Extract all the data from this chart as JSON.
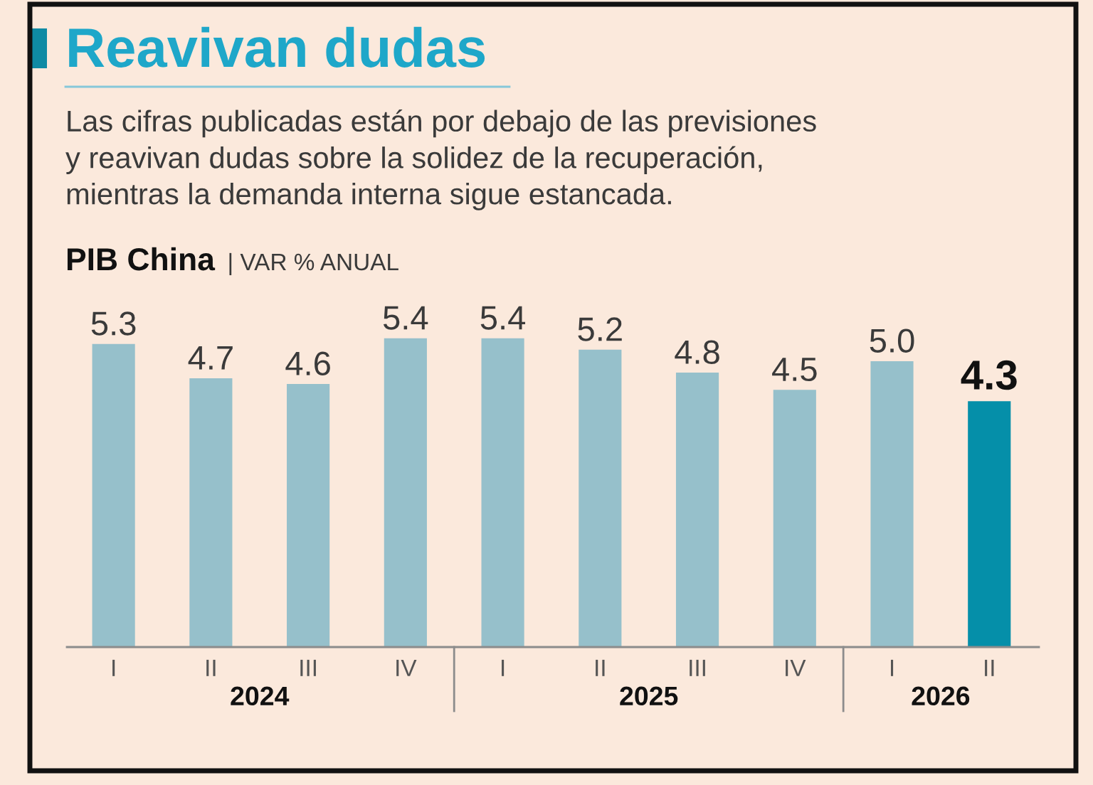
{
  "chart_data": {
    "type": "bar",
    "title": "Reavivan dudas",
    "subtitle": "Las cifras publicadas están por debajo de las previsiones\ny reavivan dudas sobre la solidez de la recuperación,\nmientras la demanda interna sigue estancada.",
    "ylabel": "PIB China | VAR % ANUAL",
    "categories": [
      "I",
      "II",
      "III",
      "IV",
      "I",
      "II",
      "III",
      "IV",
      "I",
      "II"
    ],
    "values": [
      5.3,
      4.7,
      4.6,
      5.4,
      5.4,
      5.2,
      4.8,
      4.5,
      5.0,
      4.3
    ],
    "value_labels": [
      "5.3",
      "4.7",
      "4.6",
      "5.4",
      "5.4",
      "5.2",
      "4.8",
      "4.5",
      "5.0",
      "4.3"
    ],
    "colors": [
      "#96c0cb",
      "#96c0cb",
      "#96c0cb",
      "#96c0cb",
      "#96c0cb",
      "#96c0cb",
      "#96c0cb",
      "#96c0cb",
      "#96c0cb",
      "#058fa9"
    ],
    "tick_labels": "x",
    "annotations": [
      "2024",
      "2025",
      "2026"
    ]
  }
}
